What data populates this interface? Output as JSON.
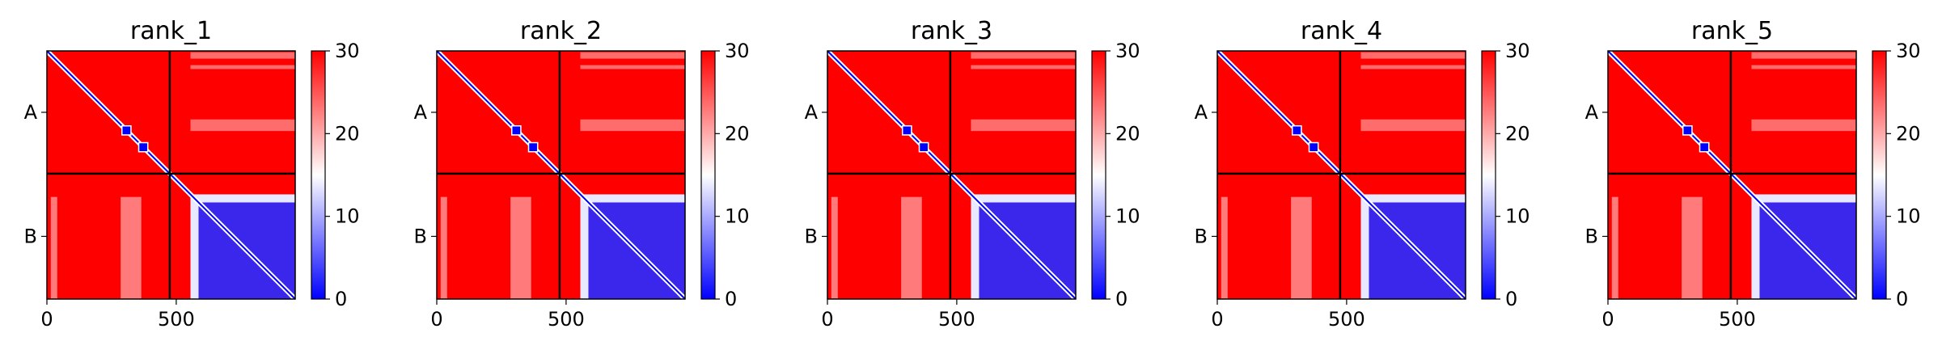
{
  "chart_data": [
    {
      "type": "heatmap",
      "title": "rank_1",
      "x_ticks": [
        "0",
        "500"
      ],
      "y_ticks": [
        "A",
        "B"
      ],
      "colorbar_ticks": [
        "0",
        "10",
        "20",
        "30"
      ],
      "colorbar_range": [
        0,
        30
      ],
      "xlim": [
        0,
        960
      ],
      "chain_boundary": 475
    },
    {
      "type": "heatmap",
      "title": "rank_2",
      "x_ticks": [
        "0",
        "500"
      ],
      "y_ticks": [
        "A",
        "B"
      ],
      "colorbar_ticks": [
        "0",
        "10",
        "20",
        "30"
      ],
      "colorbar_range": [
        0,
        30
      ],
      "xlim": [
        0,
        960
      ],
      "chain_boundary": 475
    },
    {
      "type": "heatmap",
      "title": "rank_3",
      "x_ticks": [
        "0",
        "500"
      ],
      "y_ticks": [
        "A",
        "B"
      ],
      "colorbar_ticks": [
        "0",
        "10",
        "20",
        "30"
      ],
      "colorbar_range": [
        0,
        30
      ],
      "xlim": [
        0,
        960
      ],
      "chain_boundary": 475
    },
    {
      "type": "heatmap",
      "title": "rank_4",
      "x_ticks": [
        "0",
        "500"
      ],
      "y_ticks": [
        "A",
        "B"
      ],
      "colorbar_ticks": [
        "0",
        "10",
        "20",
        "30"
      ],
      "colorbar_range": [
        0,
        30
      ],
      "xlim": [
        0,
        960
      ],
      "chain_boundary": 475
    },
    {
      "type": "heatmap",
      "title": "rank_5",
      "x_ticks": [
        "0",
        "500"
      ],
      "y_ticks": [
        "A",
        "B"
      ],
      "colorbar_ticks": [
        "0",
        "10",
        "20",
        "30"
      ],
      "colorbar_range": [
        0,
        30
      ],
      "xlim": [
        0,
        960
      ],
      "chain_boundary": 475
    }
  ],
  "colors": {
    "low": "#0000ff",
    "mid": "#ffffff",
    "high": "#ff0000",
    "axis": "#000000"
  }
}
